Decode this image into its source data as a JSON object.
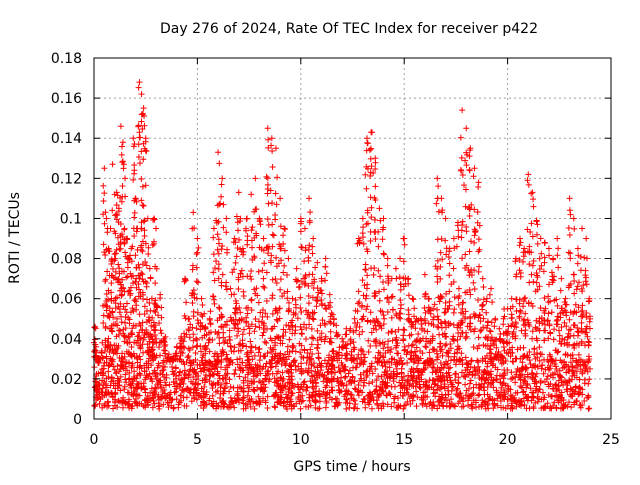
{
  "chart_data": {
    "type": "scatter",
    "title": "Day 276 of 2024, Rate Of TEC Index for receiver p422",
    "xlabel": "GPS time / hours",
    "ylabel": "ROTI / TECUs",
    "xlim": [
      0,
      25
    ],
    "ylim": [
      0,
      0.18
    ],
    "xticks": [
      0,
      5,
      10,
      15,
      20,
      25
    ],
    "xtick_labels": [
      "0",
      "5",
      "10",
      "15",
      "20",
      "25"
    ],
    "yticks": [
      0,
      0.02,
      0.04,
      0.06,
      0.08,
      0.1,
      0.12,
      0.14,
      0.16,
      0.18
    ],
    "ytick_labels": [
      "0",
      "0.02",
      "0.04",
      "0.06",
      "0.08",
      "0.1",
      "0.12",
      "0.14",
      "0.16",
      "0.18"
    ],
    "grid": true,
    "marker": "+",
    "marker_color": "#ff0000",
    "series": [
      {
        "name": "p422",
        "x": [
          0.05,
          0.1,
          0.2,
          0.3,
          0.4,
          0.5,
          0.6,
          0.7,
          0.8,
          0.9,
          1.0,
          1.1,
          1.2,
          1.3,
          1.4,
          1.5,
          1.6,
          1.7,
          1.8,
          1.9,
          2.0,
          2.1,
          2.2,
          2.3,
          2.4,
          2.5,
          2.6,
          2.7,
          2.8,
          2.9,
          3.0,
          3.2,
          3.4,
          3.6,
          3.8,
          4.0,
          4.2,
          4.4,
          4.6,
          4.8,
          5.0,
          5.2,
          5.4,
          5.6,
          5.8,
          6.0,
          6.2,
          6.4,
          6.6,
          6.8,
          7.0,
          7.2,
          7.4,
          7.6,
          7.8,
          8.0,
          8.2,
          8.4,
          8.6,
          8.8,
          9.0,
          9.2,
          9.4,
          9.6,
          9.8,
          10.0,
          10.2,
          10.4,
          10.6,
          10.8,
          11.0,
          11.2,
          11.4,
          11.6,
          11.8,
          12.0,
          12.2,
          12.4,
          12.6,
          12.8,
          13.0,
          13.2,
          13.4,
          13.6,
          13.8,
          14.0,
          14.2,
          14.4,
          14.6,
          14.8,
          15.0,
          15.2,
          15.4,
          15.6,
          15.8,
          16.0,
          16.2,
          16.4,
          16.6,
          16.8,
          17.0,
          17.2,
          17.4,
          17.6,
          17.8,
          18.0,
          18.2,
          18.4,
          18.6,
          18.8,
          19.0,
          19.2,
          19.4,
          19.6,
          19.8,
          20.0,
          20.2,
          20.4,
          20.6,
          20.8,
          21.0,
          21.2,
          21.4,
          21.6,
          21.8,
          22.0,
          22.2,
          22.4,
          22.6,
          22.8,
          23.0,
          23.2,
          23.4,
          23.6,
          23.8,
          23.95
        ],
        "y": [
          0.046,
          0.036,
          0.028,
          0.03,
          0.038,
          0.125,
          0.1,
          0.085,
          0.095,
          0.127,
          0.112,
          0.113,
          0.105,
          0.146,
          0.138,
          0.12,
          0.09,
          0.08,
          0.085,
          0.14,
          0.11,
          0.095,
          0.168,
          0.162,
          0.155,
          0.14,
          0.1,
          0.075,
          0.06,
          0.1,
          0.095,
          0.062,
          0.04,
          0.03,
          0.029,
          0.036,
          0.04,
          0.07,
          0.05,
          0.103,
          0.09,
          0.06,
          0.045,
          0.05,
          0.095,
          0.133,
          0.12,
          0.1,
          0.065,
          0.09,
          0.113,
          0.085,
          0.1,
          0.112,
          0.12,
          0.1,
          0.09,
          0.145,
          0.14,
          0.135,
          0.11,
          0.095,
          0.08,
          0.06,
          0.075,
          0.1,
          0.095,
          0.11,
          0.09,
          0.078,
          0.07,
          0.08,
          0.062,
          0.05,
          0.042,
          0.04,
          0.045,
          0.045,
          0.05,
          0.09,
          0.1,
          0.14,
          0.143,
          0.13,
          0.105,
          0.1,
          0.08,
          0.07,
          0.075,
          0.08,
          0.09,
          0.07,
          0.06,
          0.05,
          0.05,
          0.072,
          0.06,
          0.055,
          0.12,
          0.11,
          0.1,
          0.085,
          0.09,
          0.098,
          0.154,
          0.145,
          0.135,
          0.125,
          0.118,
          0.07,
          0.06,
          0.065,
          0.05,
          0.045,
          0.05,
          0.055,
          0.06,
          0.08,
          0.09,
          0.085,
          0.122,
          0.113,
          0.099,
          0.09,
          0.088,
          0.085,
          0.08,
          0.09,
          0.07,
          0.06,
          0.11,
          0.1,
          0.085,
          0.095,
          0.09,
          0.06
        ]
      }
    ],
    "baseline_band": {
      "description_free": true,
      "x_start": 0,
      "x_end": 24,
      "y_low": 0.005,
      "y_high": 0.03
    }
  }
}
